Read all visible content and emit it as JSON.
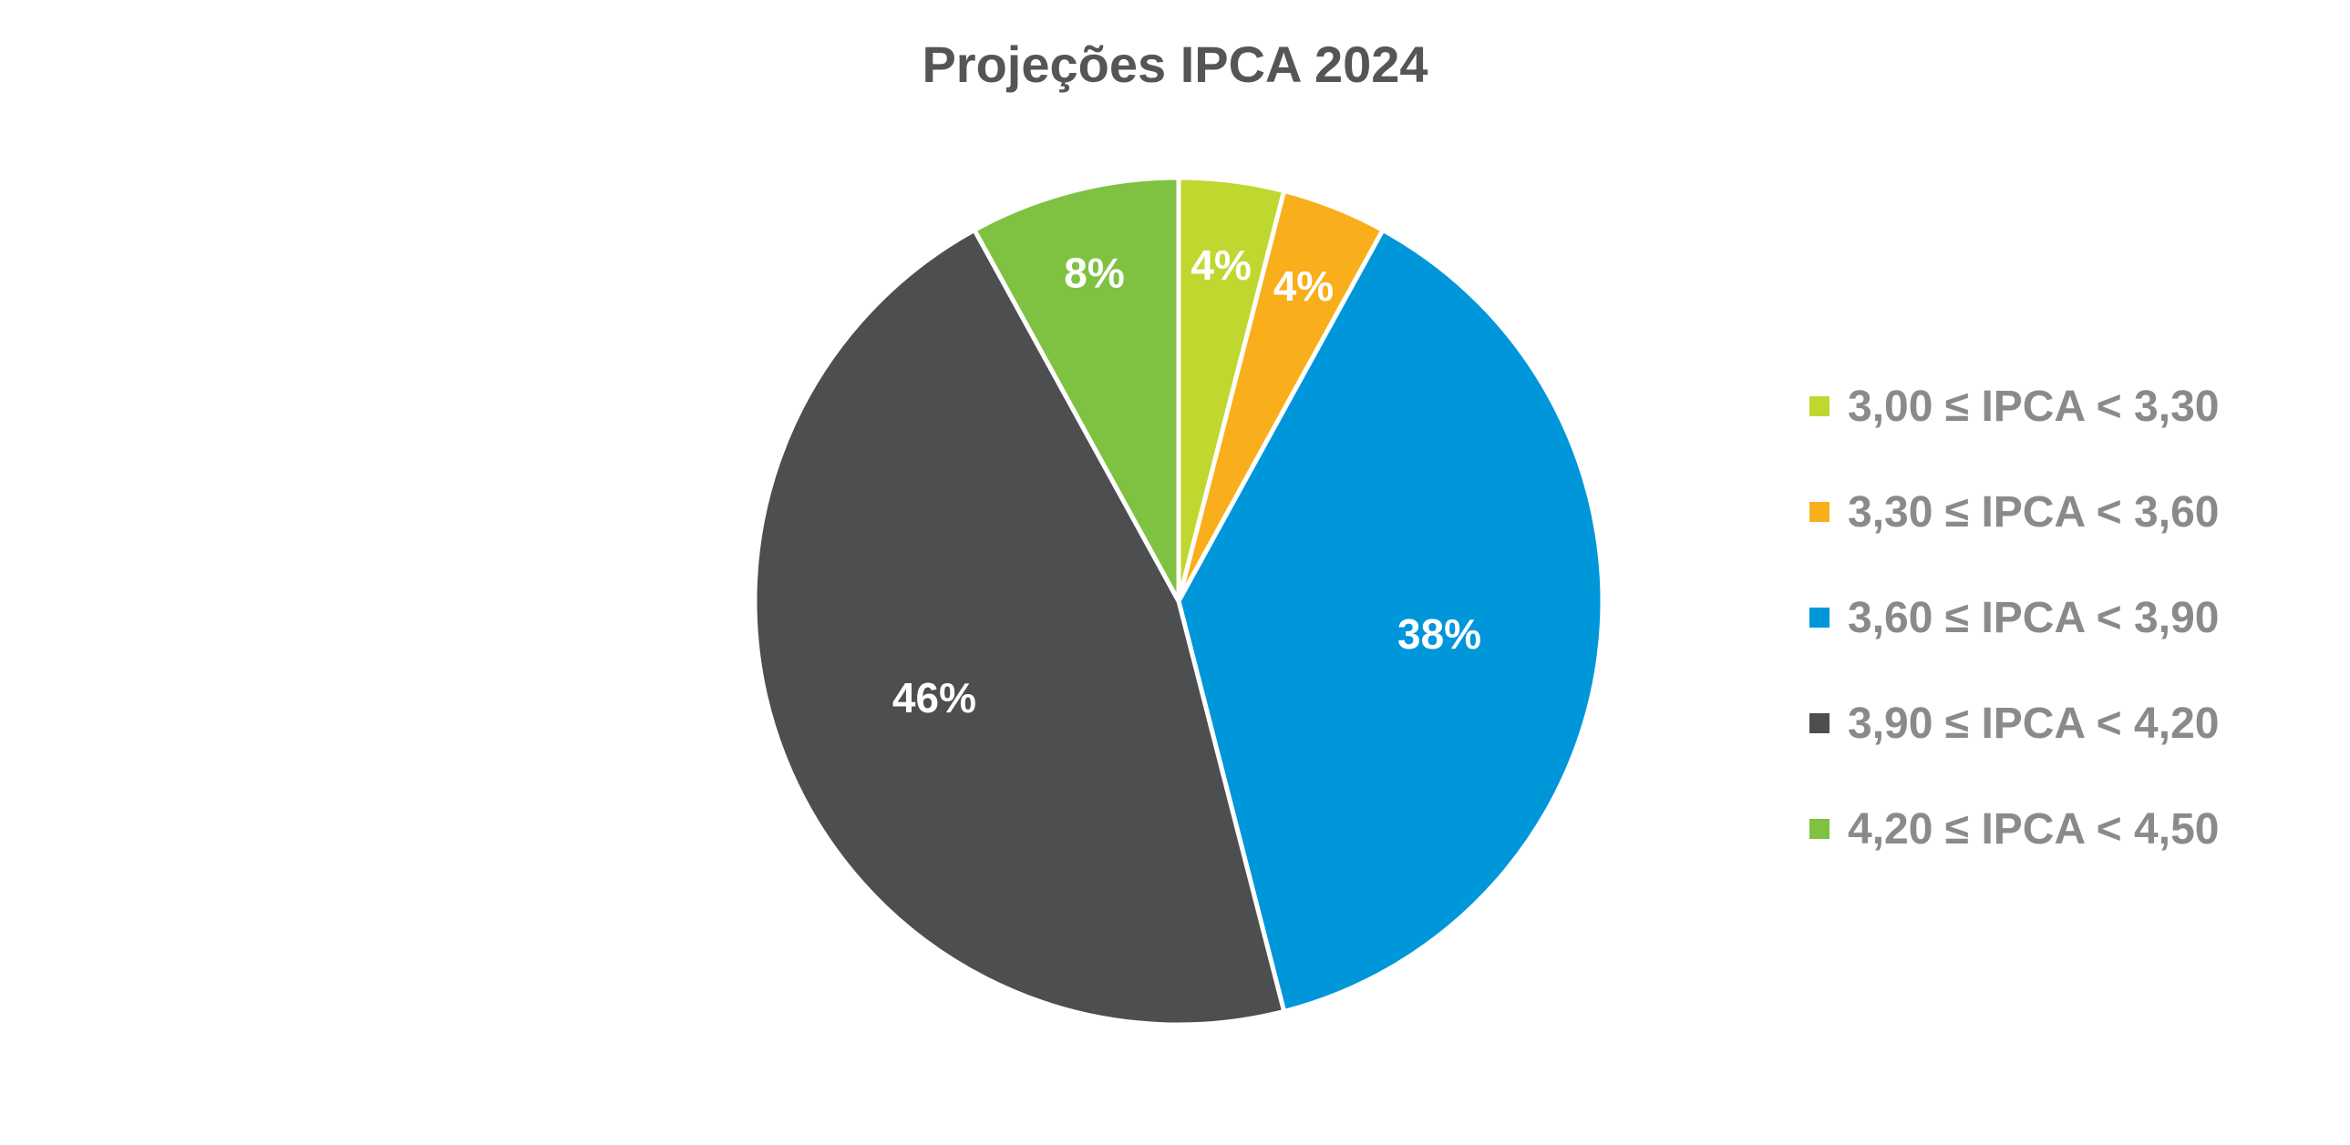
{
  "chart_data": {
    "type": "pie",
    "title": "Projeções IPCA 2024",
    "legend_position": "right",
    "slices": [
      {
        "label": "3,00 ≤ IPCA < 3,30",
        "value": 4,
        "display": "4%",
        "color": "#C0D730"
      },
      {
        "label": "3,30 ≤ IPCA < 3,60",
        "value": 4,
        "display": "4%",
        "color": "#F9AE1B"
      },
      {
        "label": "3,60 ≤ IPCA < 3,90",
        "value": 38,
        "display": "38%",
        "color": "#0096DA"
      },
      {
        "label": "3,90 ≤ IPCA < 4,20",
        "value": 46,
        "display": "46%",
        "color": "#4D4E50"
      },
      {
        "label": "4,20 ≤ IPCA < 4,50",
        "value": 8,
        "display": "8%",
        "color": "#7FC141"
      }
    ]
  }
}
